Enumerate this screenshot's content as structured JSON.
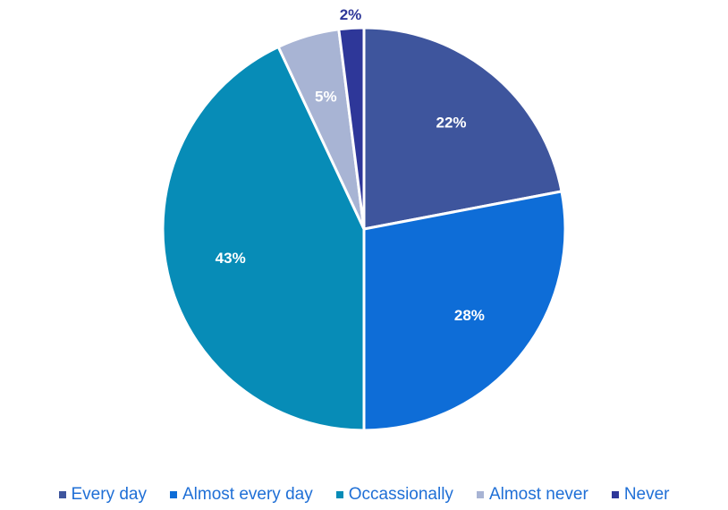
{
  "chart_data": {
    "type": "pie",
    "title": "",
    "slices": [
      {
        "label": "Every day",
        "value": 22,
        "display": "22%",
        "color": "#3E559D",
        "label_color": "#ffffff"
      },
      {
        "label": "Almost every day",
        "value": 28,
        "display": "28%",
        "color": "#0E6DD7",
        "label_color": "#ffffff"
      },
      {
        "label": "Occassionally",
        "value": 43,
        "display": "43%",
        "color": "#078CB7",
        "label_color": "#ffffff"
      },
      {
        "label": "Almost never",
        "value": 5,
        "display": "5%",
        "color": "#A8B4D4",
        "label_color": "#ffffff"
      },
      {
        "label": "Never",
        "value": 2,
        "display": "2%",
        "color": "#2E3799",
        "label_color": "#2E3799"
      }
    ],
    "legend_position": "bottom",
    "start_angle": "12 o'clock",
    "direction": "clockwise"
  }
}
